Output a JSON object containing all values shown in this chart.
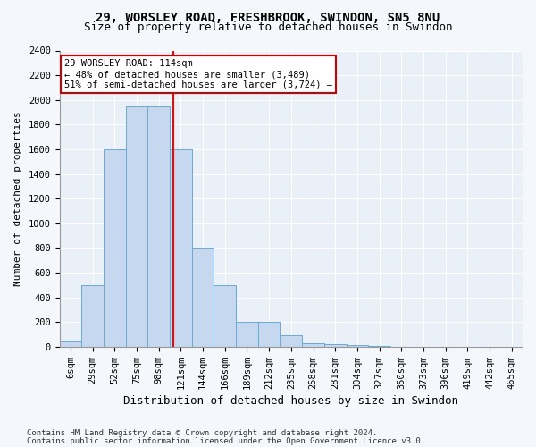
{
  "title1": "29, WORSLEY ROAD, FRESHBROOK, SWINDON, SN5 8NU",
  "title2": "Size of property relative to detached houses in Swindon",
  "xlabel": "Distribution of detached houses by size in Swindon",
  "ylabel": "Number of detached properties",
  "footer1": "Contains HM Land Registry data © Crown copyright and database right 2024.",
  "footer2": "Contains public sector information licensed under the Open Government Licence v3.0.",
  "categories": [
    "6sqm",
    "29sqm",
    "52sqm",
    "75sqm",
    "98sqm",
    "121sqm",
    "144sqm",
    "166sqm",
    "189sqm",
    "212sqm",
    "235sqm",
    "258sqm",
    "281sqm",
    "304sqm",
    "327sqm",
    "350sqm",
    "373sqm",
    "396sqm",
    "419sqm",
    "442sqm",
    "465sqm"
  ],
  "values": [
    50,
    500,
    1600,
    1950,
    1950,
    1600,
    800,
    500,
    200,
    200,
    90,
    30,
    20,
    10,
    5,
    2,
    2,
    1,
    1,
    0,
    0
  ],
  "bar_color": "#c5d8ef",
  "bar_edge_color": "#6aaad4",
  "red_line_x": 4.65,
  "annotation_text": "29 WORSLEY ROAD: 114sqm\n← 48% of detached houses are smaller (3,489)\n51% of semi-detached houses are larger (3,724) →",
  "annotation_box_color": "#ffffff",
  "annotation_box_edge": "#cc0000",
  "ylim": [
    0,
    2400
  ],
  "yticks": [
    0,
    200,
    400,
    600,
    800,
    1000,
    1200,
    1400,
    1600,
    1800,
    2000,
    2200,
    2400
  ],
  "bg_color": "#f4f7fb",
  "plot_bg_color": "#eaf0f8",
  "grid_color": "#ffffff",
  "title1_fontsize": 10,
  "title2_fontsize": 9,
  "xlabel_fontsize": 9,
  "ylabel_fontsize": 8,
  "tick_fontsize": 7.5,
  "footer_fontsize": 6.5
}
